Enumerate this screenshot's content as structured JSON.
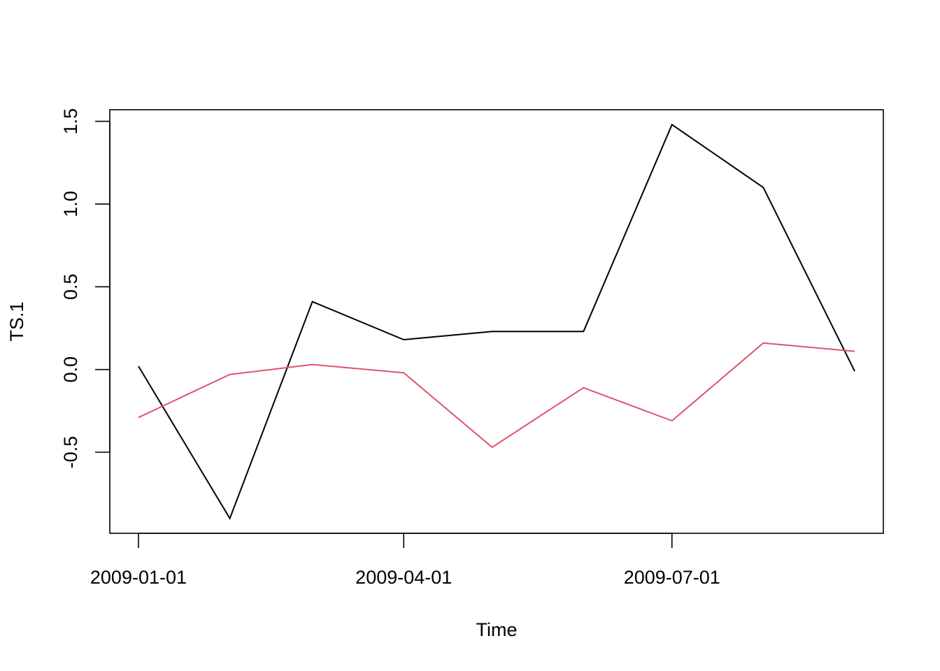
{
  "chart_data": {
    "type": "line",
    "xlabel": "Time",
    "ylabel": "TS.1",
    "x": [
      "2009-01-01",
      "2009-02-01",
      "2009-03-01",
      "2009-04-01",
      "2009-05-01",
      "2009-06-01",
      "2009-07-01",
      "2009-08-01",
      "2009-09-01"
    ],
    "series": [
      {
        "color": "#000000",
        "values": [
          0.02,
          -0.9,
          0.41,
          0.18,
          0.23,
          0.23,
          1.48,
          1.1,
          -0.01
        ]
      },
      {
        "color": "#DF536B",
        "values": [
          -0.29,
          -0.03,
          0.03,
          -0.02,
          -0.47,
          -0.11,
          -0.31,
          0.16,
          0.11
        ]
      }
    ],
    "xticks": [
      "2009-01-01",
      "2009-04-01",
      "2009-07-01"
    ],
    "yticks": [
      -0.5,
      0.0,
      0.5,
      1.0,
      1.5
    ],
    "ytick_labels": [
      "-0.5",
      "0.0",
      "0.5",
      "1.0",
      "1.5"
    ],
    "ylim": [
      -0.99,
      1.57
    ],
    "grid": false,
    "legend": "none"
  }
}
